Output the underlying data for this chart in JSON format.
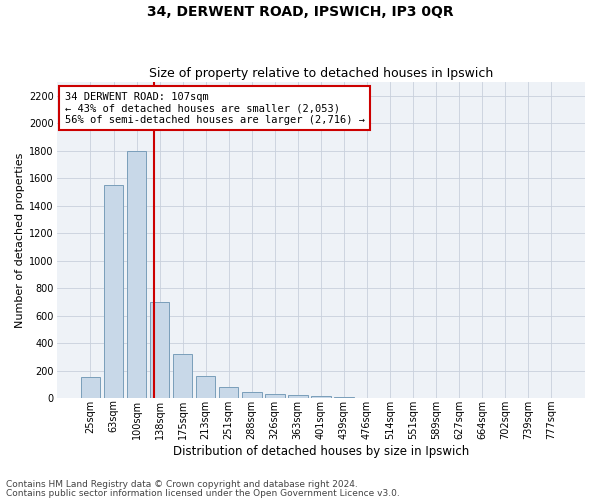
{
  "title1": "34, DERWENT ROAD, IPSWICH, IP3 0QR",
  "title2": "Size of property relative to detached houses in Ipswich",
  "xlabel": "Distribution of detached houses by size in Ipswich",
  "ylabel": "Number of detached properties",
  "bar_labels": [
    "25sqm",
    "63sqm",
    "100sqm",
    "138sqm",
    "175sqm",
    "213sqm",
    "251sqm",
    "288sqm",
    "326sqm",
    "363sqm",
    "401sqm",
    "439sqm",
    "476sqm",
    "514sqm",
    "551sqm",
    "589sqm",
    "627sqm",
    "664sqm",
    "702sqm",
    "739sqm",
    "777sqm"
  ],
  "bar_values": [
    150,
    1550,
    1800,
    700,
    320,
    160,
    80,
    42,
    26,
    20,
    12,
    5,
    3,
    2,
    1,
    1,
    1,
    0,
    0,
    0,
    0
  ],
  "bar_color": "#c8d8e8",
  "bar_edge_color": "#7a9eba",
  "annotation_text": "34 DERWENT ROAD: 107sqm\n← 43% of detached houses are smaller (2,053)\n56% of semi-detached houses are larger (2,716) →",
  "vline_x": 2.75,
  "vline_color": "#cc0000",
  "annotation_box_color": "#ffffff",
  "annotation_box_edge": "#cc0000",
  "ylim": [
    0,
    2300
  ],
  "yticks": [
    0,
    200,
    400,
    600,
    800,
    1000,
    1200,
    1400,
    1600,
    1800,
    2000,
    2200
  ],
  "footer1": "Contains HM Land Registry data © Crown copyright and database right 2024.",
  "footer2": "Contains public sector information licensed under the Open Government Licence v3.0.",
  "background_color": "#eef2f7",
  "grid_color": "#c8d0dc",
  "title1_fontsize": 10,
  "title2_fontsize": 9,
  "xlabel_fontsize": 8.5,
  "ylabel_fontsize": 8,
  "tick_fontsize": 7,
  "annotation_fontsize": 7.5,
  "footer_fontsize": 6.5
}
